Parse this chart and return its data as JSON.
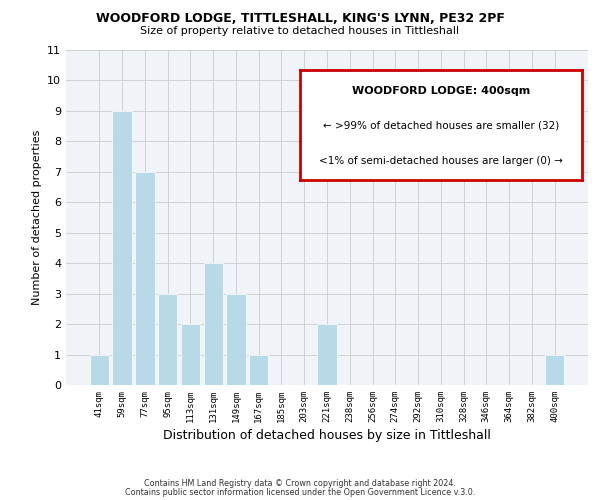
{
  "title": "WOODFORD LODGE, TITTLESHALL, KING'S LYNN, PE32 2PF",
  "subtitle": "Size of property relative to detached houses in Tittleshall",
  "xlabel": "Distribution of detached houses by size in Tittleshall",
  "ylabel": "Number of detached properties",
  "bar_labels": [
    "41sqm",
    "59sqm",
    "77sqm",
    "95sqm",
    "113sqm",
    "131sqm",
    "149sqm",
    "167sqm",
    "185sqm",
    "203sqm",
    "221sqm",
    "238sqm",
    "256sqm",
    "274sqm",
    "292sqm",
    "310sqm",
    "328sqm",
    "346sqm",
    "364sqm",
    "382sqm",
    "400sqm"
  ],
  "bar_values": [
    1,
    9,
    7,
    3,
    2,
    4,
    3,
    1,
    0,
    0,
    2,
    0,
    0,
    0,
    0,
    0,
    0,
    0,
    0,
    0,
    1
  ],
  "bar_color": "#b8d9e8",
  "ylim": [
    0,
    11
  ],
  "yticks": [
    0,
    1,
    2,
    3,
    4,
    5,
    6,
    7,
    8,
    9,
    10,
    11
  ],
  "legend_title": "WOODFORD LODGE: 400sqm",
  "legend_line1": "← >99% of detached houses are smaller (32)",
  "legend_line2": "<1% of semi-detached houses are larger (0) →",
  "legend_box_facecolor": "#ffffff",
  "legend_box_edgecolor": "#cc0000",
  "footer_line1": "Contains HM Land Registry data © Crown copyright and database right 2024.",
  "footer_line2": "Contains public sector information licensed under the Open Government Licence v.3.0.",
  "grid_color": "#d0d0d0",
  "bg_color": "#ffffff",
  "plot_bg_color": "#f0f4f8"
}
